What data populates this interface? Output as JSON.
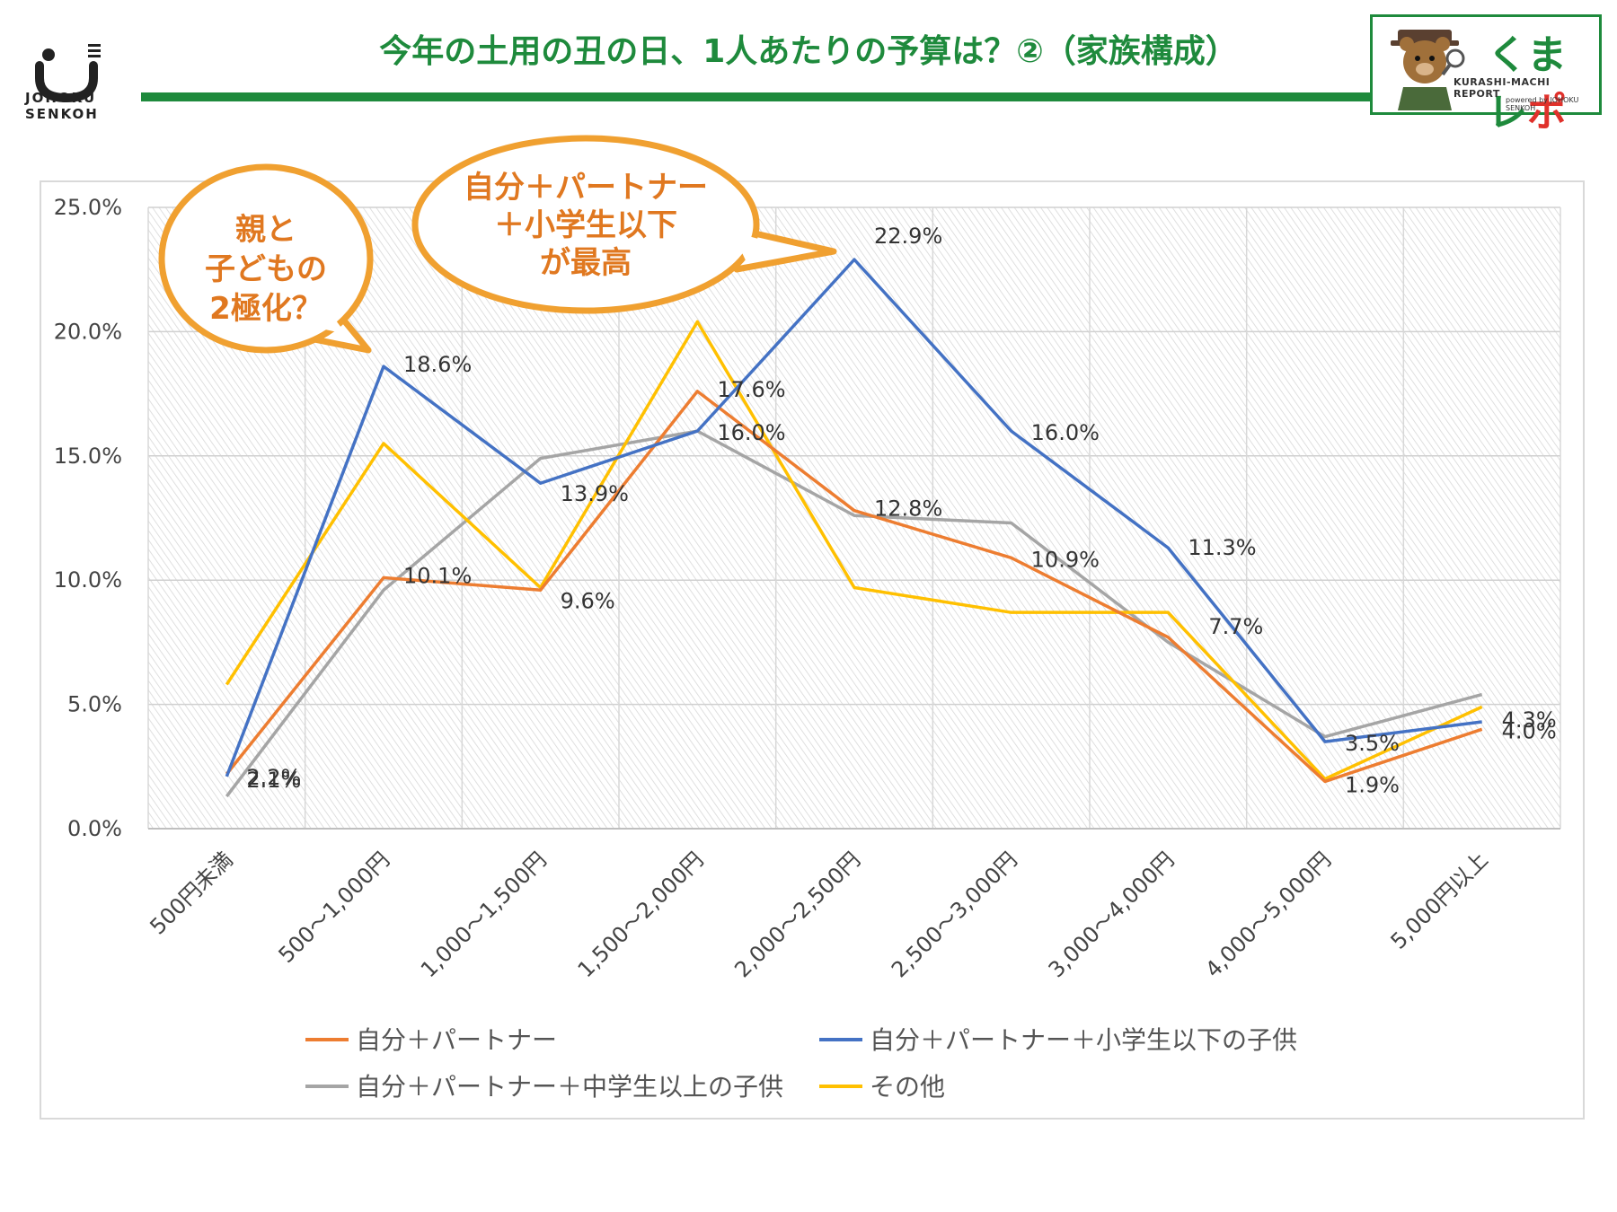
{
  "header": {
    "brand": "JOHOKU SENKOH",
    "brand_line1": "JOHOKU",
    "brand_line2": "SENKOH",
    "title": "今年の土用の丑の日、1人あたりの予算は？②（家族構成）",
    "badge_title": "くまレポ",
    "badge_title_main": "くまレ",
    "badge_title_accent": "ポ",
    "badge_sub": "KURASHI-MACHI REPORT",
    "badge_powered": "powered by JOHOKU SENKOH"
  },
  "colors": {
    "title": "#1e8a3c",
    "bubble": "#f0a030",
    "bubble_text": "#e07820"
  },
  "callouts": [
    {
      "text": "親と\n子どもの\n2極化？"
    },
    {
      "text": "自分＋パートナー\n＋小学生以下\nが最高"
    }
  ],
  "chart_data": {
    "type": "line",
    "categories": [
      "500円未満",
      "500～1,000円",
      "1,000～1,500円",
      "1,500～2,000円",
      "2,000～2,500円",
      "2,500～3,000円",
      "3,000～4,000円",
      "4,000～5,000円",
      "5,000円以上"
    ],
    "y_ticks": [
      "0.0%",
      "5.0%",
      "10.0%",
      "15.0%",
      "20.0%",
      "25.0%"
    ],
    "ylim": [
      0,
      25
    ],
    "series": [
      {
        "name": "自分＋パートナー",
        "color": "#ed7d31",
        "values": [
          2.2,
          10.1,
          9.6,
          17.6,
          12.8,
          10.9,
          7.7,
          1.9,
          4.0
        ],
        "labels": true
      },
      {
        "name": "自分＋パートナー＋小学生以下の子供",
        "color": "#4472c4",
        "values": [
          2.1,
          18.6,
          13.9,
          16.0,
          22.9,
          16.0,
          11.3,
          3.5,
          4.3
        ],
        "labels": true
      },
      {
        "name": "自分＋パートナー＋中学生以上の子供",
        "color": "#a5a5a5",
        "values": [
          1.3,
          9.6,
          14.9,
          16.0,
          12.6,
          12.3,
          7.5,
          3.7,
          5.4
        ],
        "labels": false
      },
      {
        "name": "その他",
        "color": "#ffc000",
        "values": [
          5.8,
          15.5,
          9.7,
          20.4,
          9.7,
          8.7,
          8.7,
          2.0,
          4.9
        ],
        "labels": false
      }
    ],
    "data_labels": [
      {
        "text": "2.2%",
        "series": 0,
        "index": 0
      },
      {
        "text": "2.1%",
        "series": 1,
        "index": 0
      },
      {
        "text": "18.6%",
        "series": 1,
        "index": 1
      },
      {
        "text": "10.1%",
        "series": 0,
        "index": 1
      },
      {
        "text": "13.9%",
        "series": 1,
        "index": 2
      },
      {
        "text": "9.6%",
        "series": 0,
        "index": 2
      },
      {
        "text": "17.6%",
        "series": 0,
        "index": 3
      },
      {
        "text": "16.0%",
        "series": 1,
        "index": 3
      },
      {
        "text": "22.9%",
        "series": 1,
        "index": 4
      },
      {
        "text": "12.8%",
        "series": 0,
        "index": 4
      },
      {
        "text": "16.0%",
        "series": 1,
        "index": 5
      },
      {
        "text": "10.9%",
        "series": 0,
        "index": 5
      },
      {
        "text": "11.3%",
        "series": 1,
        "index": 6
      },
      {
        "text": "7.7%",
        "series": 0,
        "index": 6
      },
      {
        "text": "3.5%",
        "series": 1,
        "index": 7
      },
      {
        "text": "1.9%",
        "series": 0,
        "index": 7
      },
      {
        "text": "4.3%",
        "series": 1,
        "index": 8
      },
      {
        "text": "4.0%",
        "series": 0,
        "index": 8
      }
    ],
    "legend_position": "bottom"
  }
}
